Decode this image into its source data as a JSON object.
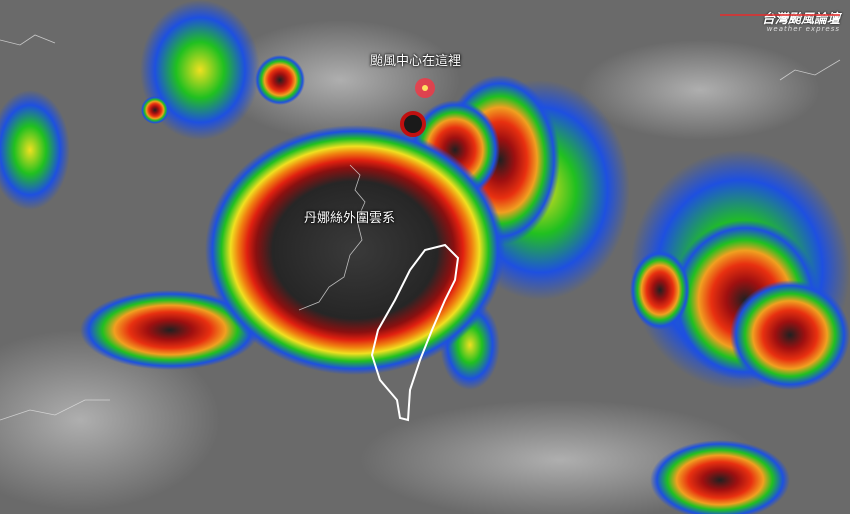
{
  "image": {
    "type": "enhanced infrared satellite image",
    "annotations": {
      "typhoon_center_label": "颱風中心在這裡",
      "outer_cloud_label": "丹娜絲外圍雲系"
    },
    "logo": {
      "name": "台灣颱風論壇",
      "subtitle": "weather express"
    },
    "colors": {
      "clear_sky": "#6a6a6a",
      "low_cloud": "#b8b8b8",
      "blue": "#1e50e0",
      "green": "#20c020",
      "yellow": "#f0e020",
      "red": "#e02010",
      "deep_convection": "#202020",
      "center_marker": "#ff3040"
    }
  }
}
